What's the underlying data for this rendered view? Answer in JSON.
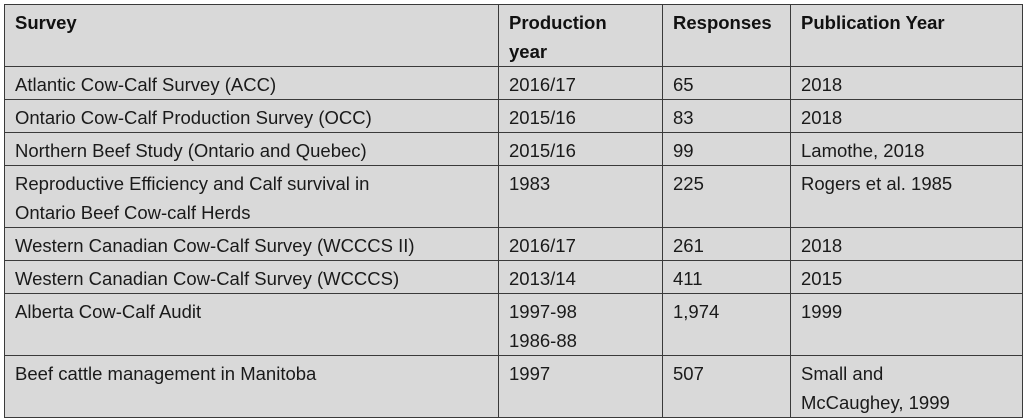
{
  "table": {
    "headers": [
      "Survey",
      "Production year",
      "Responses",
      "Publication Year"
    ],
    "header_lines": [
      [
        "Survey"
      ],
      [
        "Production",
        "year"
      ],
      [
        "Responses"
      ],
      [
        "Publication Year"
      ]
    ],
    "rows": [
      {
        "survey": [
          "Atlantic Cow-Calf Survey (ACC)"
        ],
        "year": [
          "2016/17"
        ],
        "responses": "65",
        "publication": [
          "2018"
        ]
      },
      {
        "survey": [
          "Ontario Cow-Calf Production Survey (OCC)"
        ],
        "year": [
          "2015/16"
        ],
        "responses": "83",
        "publication": [
          "2018"
        ]
      },
      {
        "survey": [
          "Northern Beef Study (Ontario and Quebec)"
        ],
        "year": [
          "2015/16"
        ],
        "responses": "99",
        "publication": [
          "Lamothe, 2018"
        ]
      },
      {
        "survey": [
          "Reproductive Efficiency and Calf survival in",
          "Ontario Beef Cow-calf Herds"
        ],
        "year": [
          "1983"
        ],
        "responses": "225",
        "publication": [
          "Rogers et al. 1985"
        ]
      },
      {
        "survey": [
          "Western Canadian Cow-Calf Survey (WCCCS II)"
        ],
        "year": [
          "2016/17"
        ],
        "responses": "261",
        "publication": [
          "2018"
        ]
      },
      {
        "survey": [
          "Western Canadian Cow-Calf Survey (WCCCS)"
        ],
        "year": [
          "2013/14"
        ],
        "responses": "411",
        "publication": [
          "2015"
        ]
      },
      {
        "survey": [
          "Alberta Cow-Calf Audit"
        ],
        "year": [
          "1997-98",
          "1986-88"
        ],
        "responses": "1,974",
        "publication": [
          "1999"
        ]
      },
      {
        "survey": [
          "Beef cattle management in Manitoba"
        ],
        "year": [
          "1997"
        ],
        "responses": "507",
        "publication": [
          "Small and",
          "McCaughey, 1999"
        ]
      }
    ]
  },
  "colors": {
    "cell_background": "#d9d9d9",
    "border": "#3a3a3a"
  }
}
